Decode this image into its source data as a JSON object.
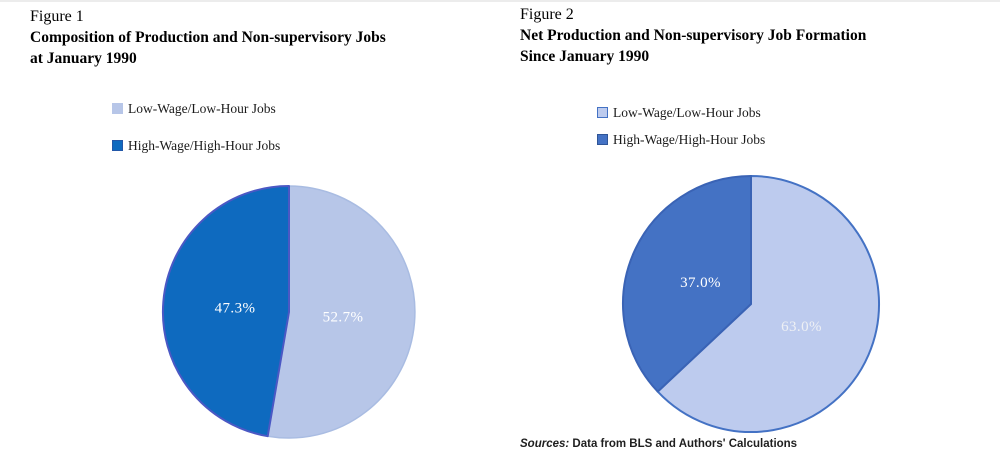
{
  "page": {
    "background_color": "#ffffff"
  },
  "figures": [
    {
      "figure_label": "Figure 1",
      "title_line1": "Composition of Production and Non-supervisory Jobs",
      "title_line2": "at January 1990"
    },
    {
      "figure_label": "Figure 2",
      "title_line1": "Net Production and Non-supervisory Job Formation",
      "title_line2": "Since January 1990"
    }
  ],
  "source_note": {
    "prefix": "Sources:",
    "rest": " Data from BLS and Authors' Calculations"
  },
  "chart_data": [
    {
      "type": "pie",
      "title": "Figure 1: Composition of Production and Non-supervisory Jobs at January 1990",
      "legend_position": "above-left",
      "start_angle": "12-oclock",
      "direction": "clockwise",
      "slices": [
        {
          "label": "Low-Wage/Low-Hour Jobs",
          "value": 52.7,
          "display": "52.7%",
          "fill": "#b7c6e8",
          "stroke": "#a9bce2",
          "stroke_width": 1.5,
          "swatch_stroke": "#b7c6e8",
          "label_color": "#ffffff"
        },
        {
          "label": "High-Wage/High-Hour Jobs",
          "value": 47.3,
          "display": "47.3%",
          "fill": "#0e6abf",
          "stroke": "#4b58c4",
          "stroke_width": 2,
          "swatch_stroke": "#2257a8",
          "label_color": "#ffffff"
        }
      ]
    },
    {
      "type": "pie",
      "title": "Figure 2: Net Production and Non-supervisory Job Formation Since January 1990",
      "legend_position": "above-left",
      "start_angle": "12-oclock",
      "direction": "clockwise",
      "slices": [
        {
          "label": "Low-Wage/Low-Hour Jobs",
          "value": 63.0,
          "display": "63.0%",
          "fill": "#bdcbee",
          "stroke": "#4472c4",
          "stroke_width": 2,
          "swatch_stroke": "#4472c4",
          "label_color": "#eef0f4"
        },
        {
          "label": "High-Wage/High-Hour Jobs",
          "value": 37.0,
          "display": "37.0%",
          "fill": "#4472c4",
          "stroke": "#3a63b5",
          "stroke_width": 2,
          "swatch_stroke": "#2f5597",
          "label_color": "#ffffff"
        }
      ]
    }
  ]
}
